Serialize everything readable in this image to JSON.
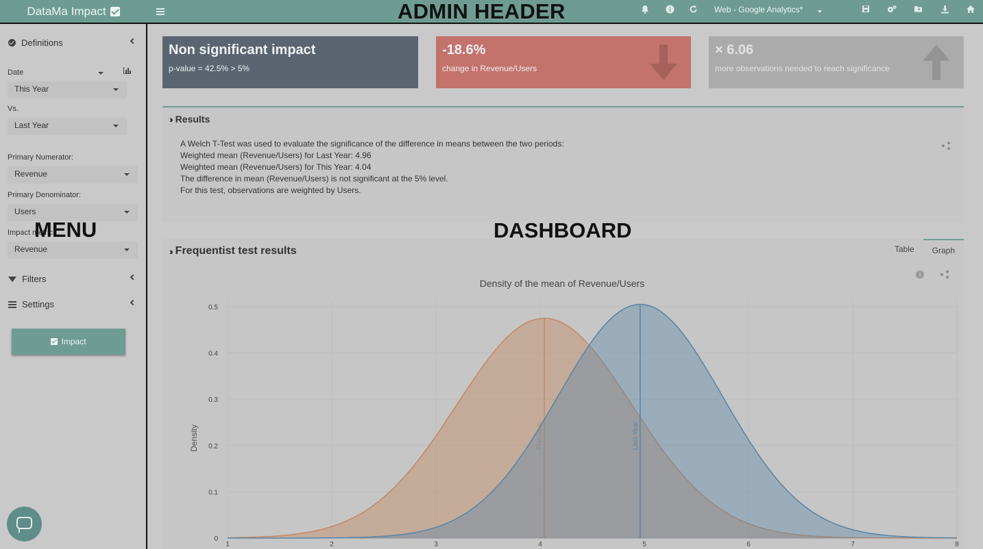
{
  "header": {
    "brand": "DataMa Impact",
    "overlay_label": "ADMIN HEADER",
    "source_select": "Web - Google Analytics*"
  },
  "sidebar": {
    "definitions": "Definitions",
    "date_label": "Date",
    "date_value": "This Year",
    "vs_label": "Vs.",
    "vs_value": "Last Year",
    "primary_numerator_label": "Primary Numerator:",
    "primary_numerator_value": "Revenue",
    "primary_denominator_label": "Primary Denominator:",
    "primary_denominator_value": "Users",
    "impact_metric_label": "Impact metric:",
    "impact_metric_value": "Revenue",
    "filters": "Filters",
    "settings": "Settings",
    "impact_button": "Impact",
    "overlay_label": "MENU"
  },
  "kpis": [
    {
      "title": "Non significant impact",
      "subtitle": "p-value = 42.5% > 5%",
      "color": "#5b6571"
    },
    {
      "title": "-18.6%",
      "subtitle": "change in Revenue/Users",
      "color": "#c4726c",
      "icon": "arrow-down-icon"
    },
    {
      "title": "× 6.06",
      "subtitle": "more observations needed to reach significance",
      "color": "#ababab",
      "icon": "arrow-up-icon"
    }
  ],
  "results": {
    "title": "Results",
    "lines": [
      "A Welch T-Test was used to evaluate the significance of the difference in means between the two periods:",
      "Weighted mean (Revenue/Users) for Last Year: 4.96",
      "Weighted mean (Revenue/Users) for This Year: 4.04",
      "The difference in mean (Revenue/Users) is not significant at the 5% level.",
      "For this test, observations are weighted by Users."
    ]
  },
  "dashboard_overlay_label": "DASHBOARD",
  "freq": {
    "title": "Frequentist test results",
    "tabs": [
      "Table",
      "Graph"
    ],
    "active_tab": "Graph"
  },
  "chart_data": {
    "type": "area",
    "title": "Density of the mean of Revenue/Users",
    "xlabel": "",
    "ylabel": "Density",
    "xlim": [
      1,
      8
    ],
    "ylim": [
      0,
      0.5
    ],
    "x_ticks": [
      1,
      2,
      3,
      4,
      5,
      6,
      7,
      8
    ],
    "y_ticks": [
      0,
      0.1,
      0.2,
      0.3,
      0.4,
      0.5
    ],
    "grid": true,
    "series": [
      {
        "name": "This Year",
        "mean": 4.04,
        "peak": 0.475,
        "sd": 0.84,
        "color": "#c48a64"
      },
      {
        "name": "Last Year",
        "mean": 4.96,
        "peak": 0.505,
        "sd": 0.79,
        "color": "#5b86a8"
      }
    ]
  }
}
